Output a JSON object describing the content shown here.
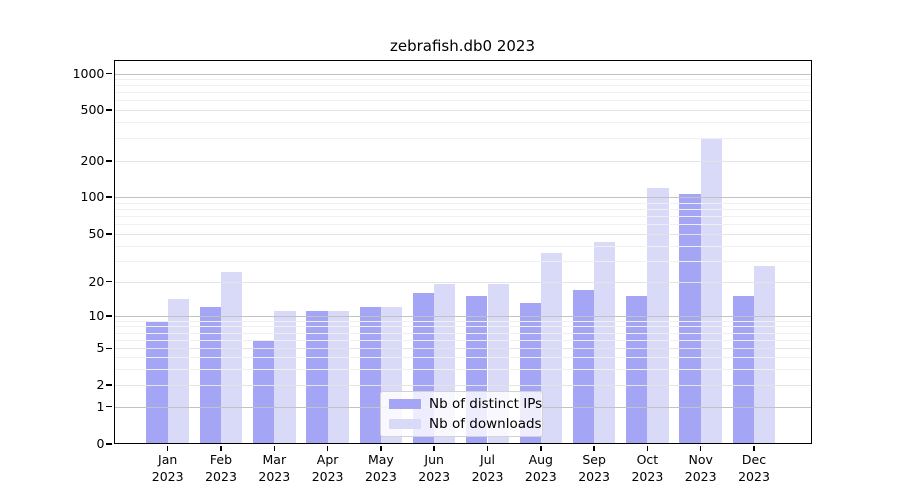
{
  "chart_data": {
    "type": "bar",
    "title": "zebrafish.db0 2023",
    "categories": [
      "Jan",
      "Feb",
      "Mar",
      "Apr",
      "May",
      "Jun",
      "Jul",
      "Aug",
      "Sep",
      "Oct",
      "Nov",
      "Dec"
    ],
    "year_label": "2023",
    "series": [
      {
        "name": "Nb of distinct IPs",
        "color": "#a5a5f6",
        "values": [
          9,
          12,
          6,
          11,
          12,
          16,
          15,
          13,
          17,
          15,
          105,
          15
        ]
      },
      {
        "name": "Nb of downloads",
        "color": "#d9d9f8",
        "values": [
          14,
          24,
          11,
          11,
          12,
          19,
          19,
          35,
          43,
          118,
          300,
          27
        ]
      }
    ],
    "yticks": [
      0,
      1,
      2,
      5,
      10,
      20,
      50,
      100,
      200,
      500,
      1000
    ],
    "ytick_labels": [
      "0",
      "1",
      "2",
      "5",
      "10",
      "20",
      "50",
      "100",
      "200",
      "500",
      "1000"
    ],
    "yscale": "symlog",
    "ylim": [
      0,
      1300
    ],
    "grid": "on",
    "legend_position": "lower center"
  }
}
